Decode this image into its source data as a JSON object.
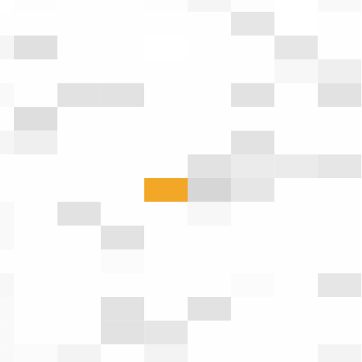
{
  "chart_data": {
    "type": "heatmap",
    "title": "",
    "xlabel": "",
    "ylabel": "",
    "grid": false,
    "legend": "none",
    "colors": {
      "low": "#ffffff",
      "high": "#d6d6d6",
      "highlight": "#f2a726",
      "label_light": "#c4c4c4",
      "label_dark": "#ffffff"
    },
    "highlight": {
      "row": 8,
      "col": 4
    },
    "columns": 9,
    "rows": 16,
    "values": [
      [
        0.0,
        0.05,
        0.02,
        0.02,
        0.05,
        0.25,
        0.04,
        0.0,
        0.15
      ],
      [
        0.02,
        0.02,
        0.02,
        0.03,
        0.03,
        0.03,
        0.6,
        0.01,
        0.02
      ],
      [
        0.25,
        0.75,
        0.02,
        0.02,
        0.01,
        0.02,
        0.02,
        0.6,
        0.03
      ],
      [
        0.02,
        0.02,
        0.03,
        0.03,
        0.03,
        0.02,
        0.02,
        0.2,
        0.4
      ],
      [
        0.15,
        0.03,
        0.7,
        0.7,
        0.03,
        0.03,
        0.7,
        0.03,
        0.7
      ],
      [
        0.02,
        0.8,
        0.02,
        0.02,
        0.02,
        0.02,
        0.02,
        0.02,
        0.02
      ],
      [
        0.25,
        0.4,
        0.02,
        0.02,
        0.02,
        0.02,
        0.7,
        0.02,
        0.02
      ],
      [
        0.02,
        0.02,
        0.02,
        0.02,
        0.02,
        0.7,
        0.5,
        0.5,
        0.6
      ],
      [
        0.02,
        0.02,
        0.02,
        0.02,
        0.2,
        1.0,
        0.6,
        0.02,
        0.02
      ],
      [
        0.15,
        0.02,
        0.7,
        0.02,
        0.02,
        0.2,
        0.02,
        0.02,
        0.02
      ],
      [
        0.15,
        0.02,
        0.02,
        0.7,
        0.02,
        0.02,
        0.02,
        0.02,
        0.02
      ],
      [
        0.02,
        0.02,
        0.02,
        0.1,
        0.02,
        0.02,
        0.02,
        0.02,
        0.02
      ],
      [
        0.2,
        0.02,
        0.02,
        0.02,
        0.02,
        0.02,
        0.1,
        0.02,
        0.6
      ],
      [
        0.15,
        0.02,
        0.02,
        0.7,
        0.02,
        0.7,
        0.02,
        0.02,
        0.02
      ],
      [
        0.15,
        0.02,
        0.02,
        0.7,
        0.6,
        0.02,
        0.02,
        0.02,
        0.02
      ],
      [
        0.15,
        0.1,
        0.3,
        0.02,
        0.3,
        0.02,
        0.02,
        0.02,
        0.3
      ]
    ]
  }
}
